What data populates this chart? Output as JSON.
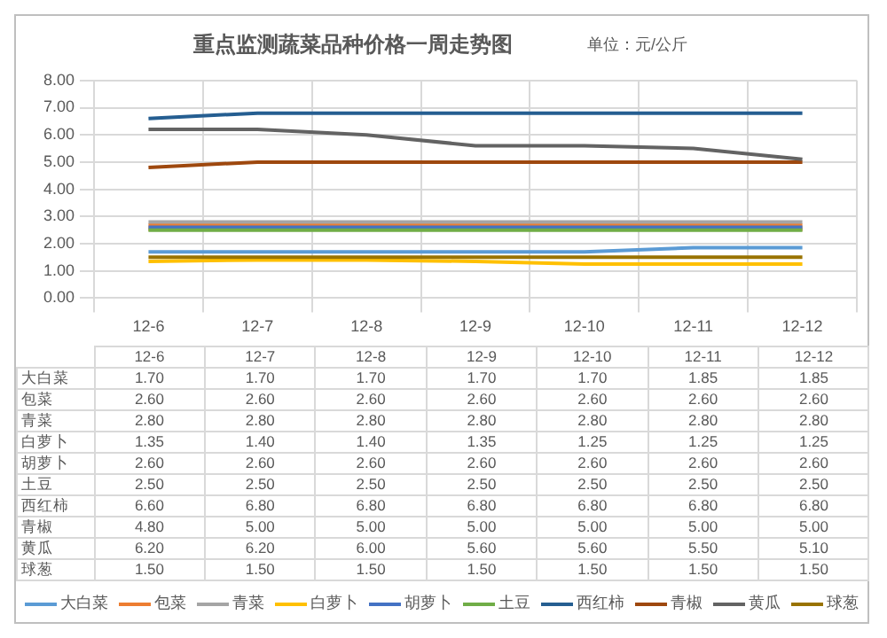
{
  "chart_data": {
    "type": "line",
    "title": "重点监测蔬菜品种价格一周走势图",
    "subtitle": "单位：元/公斤",
    "categories": [
      "12-6",
      "12-7",
      "12-8",
      "12-9",
      "12-10",
      "12-11",
      "12-12"
    ],
    "series": [
      {
        "name": "大白菜",
        "color": "#5b9bd5",
        "values": [
          1.7,
          1.7,
          1.7,
          1.7,
          1.7,
          1.85,
          1.85
        ],
        "value_labels": [
          "1.70",
          "1.70",
          "1.70",
          "1.70",
          "1.70",
          "1.85",
          "1.85"
        ]
      },
      {
        "name": "包菜",
        "color": "#ed7d31",
        "values": [
          2.6,
          2.6,
          2.6,
          2.6,
          2.6,
          2.6,
          2.6
        ],
        "value_labels": [
          "2.60",
          "2.60",
          "2.60",
          "2.60",
          "2.60",
          "2.60",
          "2.60"
        ]
      },
      {
        "name": "青菜",
        "color": "#a5a5a5",
        "values": [
          2.8,
          2.8,
          2.8,
          2.8,
          2.8,
          2.8,
          2.8
        ],
        "value_labels": [
          "2.80",
          "2.80",
          "2.80",
          "2.80",
          "2.80",
          "2.80",
          "2.80"
        ]
      },
      {
        "name": "白萝卜",
        "color": "#ffc000",
        "values": [
          1.35,
          1.4,
          1.4,
          1.35,
          1.25,
          1.25,
          1.25
        ],
        "value_labels": [
          "1.35",
          "1.40",
          "1.40",
          "1.35",
          "1.25",
          "1.25",
          "1.25"
        ]
      },
      {
        "name": "胡萝卜",
        "color": "#4472c4",
        "values": [
          2.6,
          2.6,
          2.6,
          2.6,
          2.6,
          2.6,
          2.6
        ],
        "value_labels": [
          "2.60",
          "2.60",
          "2.60",
          "2.60",
          "2.60",
          "2.60",
          "2.60"
        ]
      },
      {
        "name": "土豆",
        "color": "#70ad47",
        "values": [
          2.5,
          2.5,
          2.5,
          2.5,
          2.5,
          2.5,
          2.5
        ],
        "value_labels": [
          "2.50",
          "2.50",
          "2.50",
          "2.50",
          "2.50",
          "2.50",
          "2.50"
        ]
      },
      {
        "name": "西红柿",
        "color": "#255e91",
        "values": [
          6.6,
          6.8,
          6.8,
          6.8,
          6.8,
          6.8,
          6.8
        ],
        "value_labels": [
          "6.60",
          "6.80",
          "6.80",
          "6.80",
          "6.80",
          "6.80",
          "6.80"
        ]
      },
      {
        "name": "青椒",
        "color": "#9e480e",
        "values": [
          4.8,
          5.0,
          5.0,
          5.0,
          5.0,
          5.0,
          5.0
        ],
        "value_labels": [
          "4.80",
          "5.00",
          "5.00",
          "5.00",
          "5.00",
          "5.00",
          "5.00"
        ]
      },
      {
        "name": "黄瓜",
        "color": "#636363",
        "values": [
          6.2,
          6.2,
          6.0,
          5.6,
          5.6,
          5.5,
          5.1
        ],
        "value_labels": [
          "6.20",
          "6.20",
          "6.00",
          "5.60",
          "5.60",
          "5.50",
          "5.10"
        ]
      },
      {
        "name": "球葱",
        "color": "#997300",
        "values": [
          1.5,
          1.5,
          1.5,
          1.5,
          1.5,
          1.5,
          1.5
        ],
        "value_labels": [
          "1.50",
          "1.50",
          "1.50",
          "1.50",
          "1.50",
          "1.50",
          "1.50"
        ]
      }
    ],
    "ylim": [
      0,
      8
    ],
    "yticks": [
      {
        "value": 0,
        "label": "0.00"
      },
      {
        "value": 1,
        "label": "1.00"
      },
      {
        "value": 2,
        "label": "2.00"
      },
      {
        "value": 3,
        "label": "3.00"
      },
      {
        "value": 4,
        "label": "4.00"
      },
      {
        "value": 5,
        "label": "5.00"
      },
      {
        "value": 6,
        "label": "6.00"
      },
      {
        "value": 7,
        "label": "7.00"
      },
      {
        "value": 8,
        "label": "8.00"
      }
    ],
    "grid": true,
    "legend": "bottom",
    "marker": "none",
    "line_style": "solid"
  }
}
